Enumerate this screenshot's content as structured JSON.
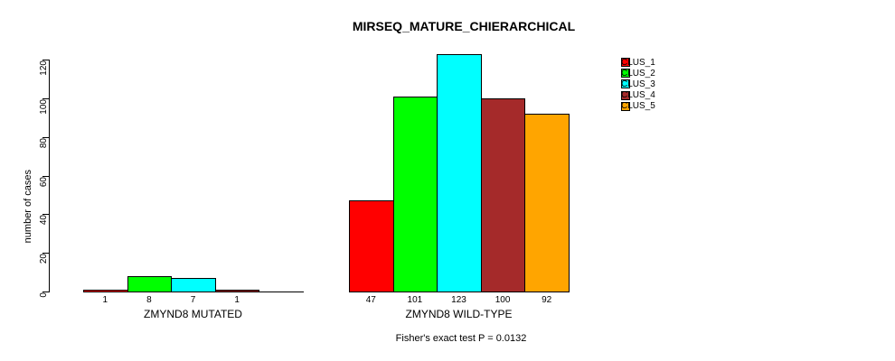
{
  "chart_data": {
    "type": "bar",
    "title": "MIRSEQ_MATURE_CHIERARCHICAL",
    "ylabel": "number of cases",
    "annotation": "Fisher's exact test P = 0.0132",
    "categories": [
      "ZMYND8 MUTATED",
      "ZMYND8 WILD-TYPE"
    ],
    "series": [
      {
        "name": "CLUS_1",
        "color": "#FF0000",
        "values": [
          1,
          47
        ]
      },
      {
        "name": "CLUS_2",
        "color": "#00FF00",
        "values": [
          8,
          101
        ]
      },
      {
        "name": "CLUS_3",
        "color": "#00FFFF",
        "values": [
          7,
          123
        ]
      },
      {
        "name": "CLUS_4",
        "color": "#A52A2A",
        "values": [
          1,
          100
        ]
      },
      {
        "name": "CLUS_5",
        "color": "#FFA500",
        "values": [
          0,
          92
        ]
      }
    ],
    "yticks": [
      0,
      20,
      40,
      60,
      80,
      100,
      120
    ],
    "ylim": [
      0,
      123
    ],
    "grid": false,
    "legend_position": "top-right",
    "bar_value_labels_shown": true,
    "zero_values_unlabeled": true
  }
}
